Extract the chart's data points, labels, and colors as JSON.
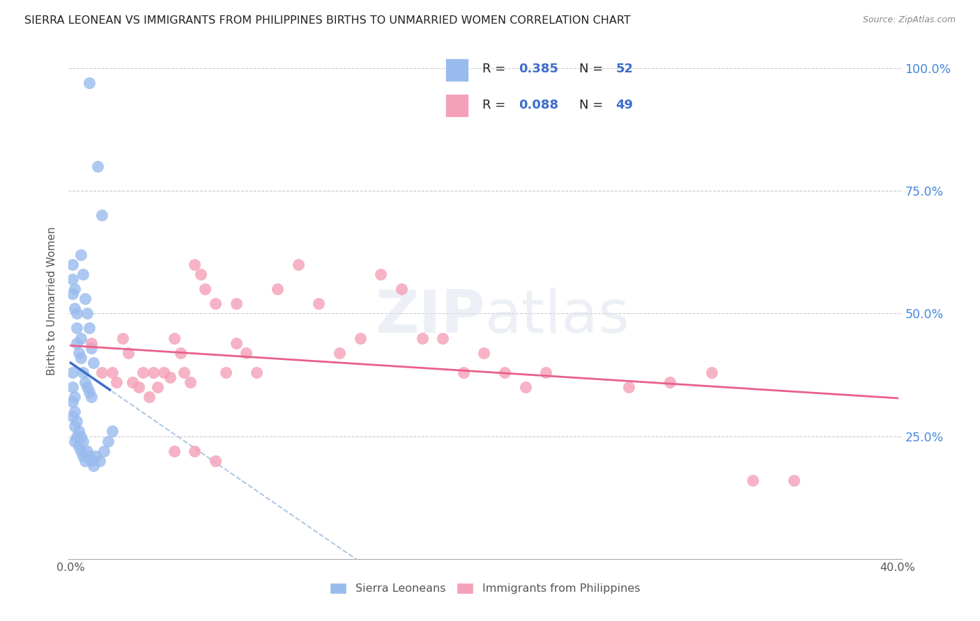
{
  "title": "SIERRA LEONEAN VS IMMIGRANTS FROM PHILIPPINES BIRTHS TO UNMARRIED WOMEN CORRELATION CHART",
  "source": "Source: ZipAtlas.com",
  "ylabel": "Births to Unmarried Women",
  "xlim": [
    0.0,
    0.4
  ],
  "ylim": [
    0.0,
    1.05
  ],
  "watermark": "ZIPatlas",
  "blue_scatter_x": [
    0.009,
    0.013,
    0.015,
    0.005,
    0.006,
    0.007,
    0.008,
    0.009,
    0.01,
    0.011,
    0.001,
    0.001,
    0.001,
    0.002,
    0.002,
    0.003,
    0.003,
    0.003,
    0.004,
    0.005,
    0.005,
    0.006,
    0.007,
    0.008,
    0.009,
    0.01,
    0.001,
    0.001,
    0.001,
    0.001,
    0.002,
    0.002,
    0.002,
    0.002,
    0.003,
    0.003,
    0.004,
    0.004,
    0.005,
    0.005,
    0.006,
    0.006,
    0.007,
    0.008,
    0.009,
    0.01,
    0.011,
    0.012,
    0.014,
    0.016,
    0.018,
    0.02
  ],
  "blue_scatter_y": [
    0.97,
    0.8,
    0.7,
    0.62,
    0.58,
    0.53,
    0.5,
    0.47,
    0.43,
    0.4,
    0.6,
    0.57,
    0.54,
    0.55,
    0.51,
    0.5,
    0.47,
    0.44,
    0.42,
    0.45,
    0.41,
    0.38,
    0.36,
    0.35,
    0.34,
    0.33,
    0.38,
    0.35,
    0.32,
    0.29,
    0.33,
    0.3,
    0.27,
    0.24,
    0.28,
    0.25,
    0.26,
    0.23,
    0.25,
    0.22,
    0.24,
    0.21,
    0.2,
    0.22,
    0.21,
    0.2,
    0.19,
    0.21,
    0.2,
    0.22,
    0.24,
    0.26
  ],
  "pink_scatter_x": [
    0.01,
    0.015,
    0.02,
    0.022,
    0.025,
    0.028,
    0.03,
    0.033,
    0.035,
    0.038,
    0.04,
    0.042,
    0.045,
    0.048,
    0.05,
    0.053,
    0.055,
    0.058,
    0.06,
    0.063,
    0.065,
    0.07,
    0.075,
    0.08,
    0.085,
    0.09,
    0.1,
    0.11,
    0.12,
    0.13,
    0.14,
    0.15,
    0.16,
    0.17,
    0.18,
    0.19,
    0.2,
    0.21,
    0.22,
    0.23,
    0.05,
    0.06,
    0.07,
    0.08,
    0.27,
    0.29,
    0.31,
    0.33,
    0.35
  ],
  "pink_scatter_y": [
    0.44,
    0.38,
    0.38,
    0.36,
    0.45,
    0.42,
    0.36,
    0.35,
    0.38,
    0.33,
    0.38,
    0.35,
    0.38,
    0.37,
    0.45,
    0.42,
    0.38,
    0.36,
    0.6,
    0.58,
    0.55,
    0.52,
    0.38,
    0.52,
    0.42,
    0.38,
    0.55,
    0.6,
    0.52,
    0.42,
    0.45,
    0.58,
    0.55,
    0.45,
    0.45,
    0.38,
    0.42,
    0.38,
    0.35,
    0.38,
    0.22,
    0.22,
    0.2,
    0.44,
    0.35,
    0.36,
    0.38,
    0.16,
    0.16
  ],
  "blue_line_color": "#3b6dcc",
  "pink_line_color": "#e8608a",
  "blue_scatter_color": "#99bbee",
  "pink_scatter_color": "#f4a0b8",
  "dashed_line_color": "#aac4e0",
  "grid_color": "#cccccc",
  "title_color": "#222222",
  "right_axis_label_color": "#4488dd",
  "legend_number_color": "#3b6dcc",
  "legend_label_color": "#222222"
}
